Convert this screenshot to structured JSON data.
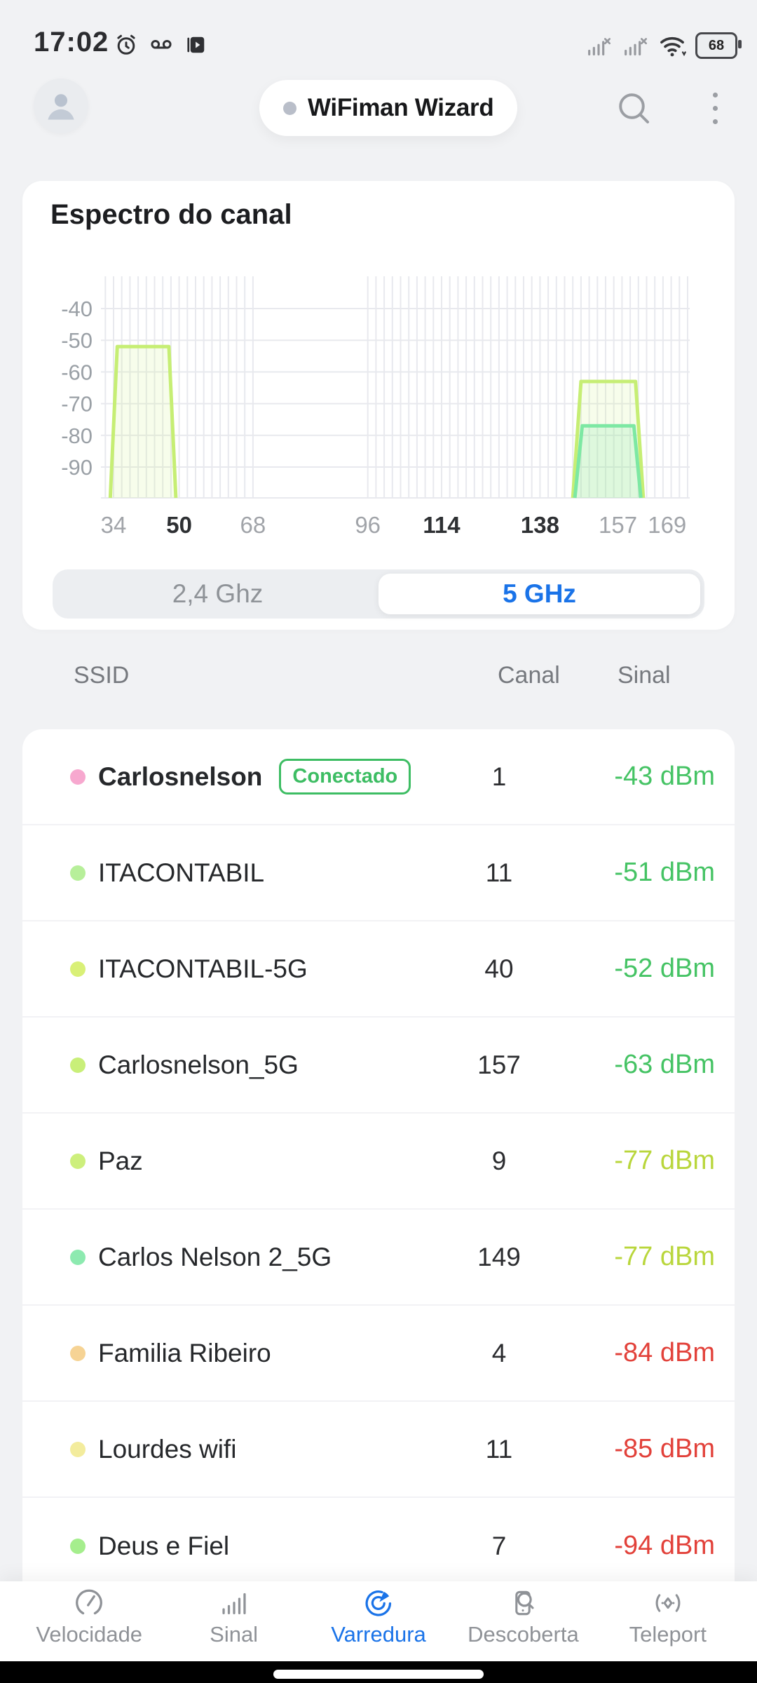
{
  "status_bar": {
    "time": "17:02",
    "battery_percent": "68",
    "left_icons": [
      "alarm-icon",
      "voicemail-icon",
      "screen-record-icon"
    ],
    "right_icons": [
      "cell-signal-icon",
      "cell-signal-icon",
      "wifi-icon",
      "battery-indicator"
    ]
  },
  "header": {
    "app_title": "WiFiman Wizard",
    "icons": [
      "avatar",
      "status-dot",
      "search-icon",
      "overflow-menu-icon"
    ]
  },
  "chart": {
    "title": "Espectro do canal"
  },
  "chart_data": {
    "type": "area",
    "title": "Espectro do canal",
    "xlabel": "channel",
    "ylabel": "dBm",
    "ylim": [
      -96,
      -33
    ],
    "y_ticks": [
      -40,
      -50,
      -60,
      -70,
      -80,
      -90
    ],
    "x_ticks": [
      {
        "channel": 34,
        "label": "34",
        "bold": false
      },
      {
        "channel": 50,
        "label": "50",
        "bold": true
      },
      {
        "channel": 68,
        "label": "68",
        "bold": false
      },
      {
        "channel": 96,
        "label": "96",
        "bold": false
      },
      {
        "channel": 114,
        "label": "114",
        "bold": true
      },
      {
        "channel": 138,
        "label": "138",
        "bold": true
      },
      {
        "channel": 157,
        "label": "157",
        "bold": false
      },
      {
        "channel": 169,
        "label": "169",
        "bold": false
      }
    ],
    "gridline_channel_ranges": [
      [
        32,
        68
      ],
      [
        96,
        174
      ]
    ],
    "gridline_step": 2,
    "series": [
      {
        "name": "ITACONTABIL-5G",
        "peak_dbm": -52,
        "base_span": [
          33.2,
          49.2
        ],
        "top_span": [
          34.9,
          47.5
        ],
        "stroke": "#c6ee74",
        "fill": "rgba(198,238,116,0.14)"
      },
      {
        "name": "Carlosnelson_5G",
        "peak_dbm": -63,
        "base_span": [
          146.0,
          163.2
        ],
        "top_span": [
          148.0,
          161.3
        ],
        "stroke": "#c6ee74",
        "fill": "rgba(198,238,116,0.14)"
      },
      {
        "name": "Carlos Nelson 2_5G",
        "peak_dbm": -77,
        "base_span": [
          146.5,
          162.6
        ],
        "top_span": [
          148.3,
          160.9
        ],
        "stroke": "#7de8a3",
        "fill": "rgba(125,232,163,0.20)"
      }
    ]
  },
  "band_toggle": {
    "accent_color": "#1a73e8",
    "options": [
      {
        "label": "2,4 Ghz",
        "selected": false
      },
      {
        "label": "5 GHz",
        "selected": true
      }
    ]
  },
  "network_table": {
    "columns": [
      "SSID",
      "Canal",
      "Sinal"
    ],
    "badge_color": "#3dbd63",
    "rows": [
      {
        "ssid": "Carlosnelson",
        "bold": true,
        "dot_color": "#f7a8cf",
        "badge": "Conectado",
        "channel": "1",
        "signal": "-43 dBm",
        "signal_color": "#45c364"
      },
      {
        "ssid": "ITACONTABIL",
        "bold": false,
        "dot_color": "#b7ef9a",
        "badge": null,
        "channel": "11",
        "signal": "-51 dBm",
        "signal_color": "#45c364"
      },
      {
        "ssid": "ITACONTABIL-5G",
        "bold": false,
        "dot_color": "#d9f077",
        "badge": null,
        "channel": "40",
        "signal": "-52 dBm",
        "signal_color": "#45c364"
      },
      {
        "ssid": "Carlosnelson_5G",
        "bold": false,
        "dot_color": "#c9ef79",
        "badge": null,
        "channel": "157",
        "signal": "-63 dBm",
        "signal_color": "#45c364"
      },
      {
        "ssid": "Paz",
        "bold": false,
        "dot_color": "#cdef7c",
        "badge": null,
        "channel": "9",
        "signal": "-77 dBm",
        "signal_color": "#b9d63c"
      },
      {
        "ssid": "Carlos Nelson 2_5G",
        "bold": false,
        "dot_color": "#8deab0",
        "badge": null,
        "channel": "149",
        "signal": "-77 dBm",
        "signal_color": "#b9d63c"
      },
      {
        "ssid": "Familia Ribeiro",
        "bold": false,
        "dot_color": "#f6d394",
        "badge": null,
        "channel": "4",
        "signal": "-84 dBm",
        "signal_color": "#e2413a"
      },
      {
        "ssid": "Lourdes wifi",
        "bold": false,
        "dot_color": "#f3ec9d",
        "badge": null,
        "channel": "11",
        "signal": "-85 dBm",
        "signal_color": "#e2413a"
      },
      {
        "ssid": "Deus e Fiel",
        "bold": false,
        "dot_color": "#a5ee8d",
        "badge": null,
        "channel": "7",
        "signal": "-94 dBm",
        "signal_color": "#e2413a"
      }
    ]
  },
  "bottom_nav": {
    "active_color": "#1a73e8",
    "inactive_color": "#8f9297",
    "items": [
      {
        "label": "Velocidade",
        "icon": "speedometer-icon",
        "active": false
      },
      {
        "label": "Sinal",
        "icon": "signal-bars-icon",
        "active": false
      },
      {
        "label": "Varredura",
        "icon": "radar-icon",
        "active": true
      },
      {
        "label": "Descoberta",
        "icon": "discovery-icon",
        "active": false
      },
      {
        "label": "Teleport",
        "icon": "teleport-icon",
        "active": false
      }
    ]
  }
}
